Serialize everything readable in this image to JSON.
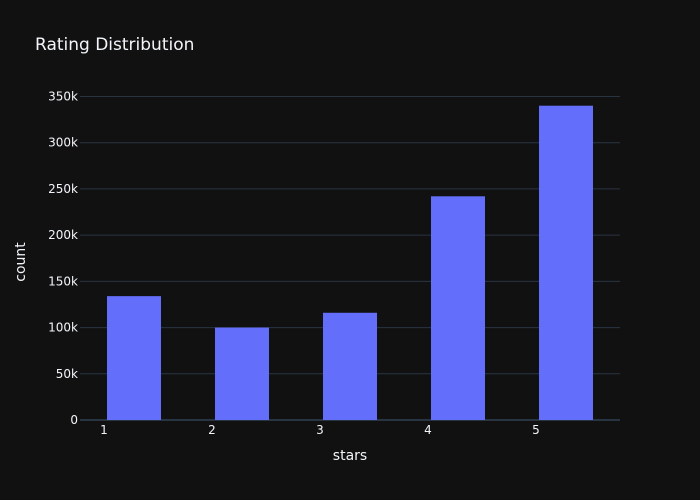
{
  "chart_data": {
    "type": "bar",
    "title": "Rating Distribution",
    "xlabel": "stars",
    "ylabel": "count",
    "categories": [
      "1",
      "2",
      "3",
      "4",
      "5"
    ],
    "values": [
      134000,
      100000,
      116000,
      242000,
      340000
    ],
    "ylim": [
      0,
      357000
    ],
    "yticks": [
      0,
      50000,
      100000,
      150000,
      200000,
      250000,
      300000,
      350000
    ],
    "ytick_labels": [
      "0",
      "50k",
      "100k",
      "150k",
      "200k",
      "250k",
      "300k",
      "350k"
    ],
    "grid": true,
    "legend": "none",
    "colors": {
      "background": "#111111",
      "bar": "#636efa",
      "grid": "#283442",
      "text": "#f2f5fa"
    }
  }
}
